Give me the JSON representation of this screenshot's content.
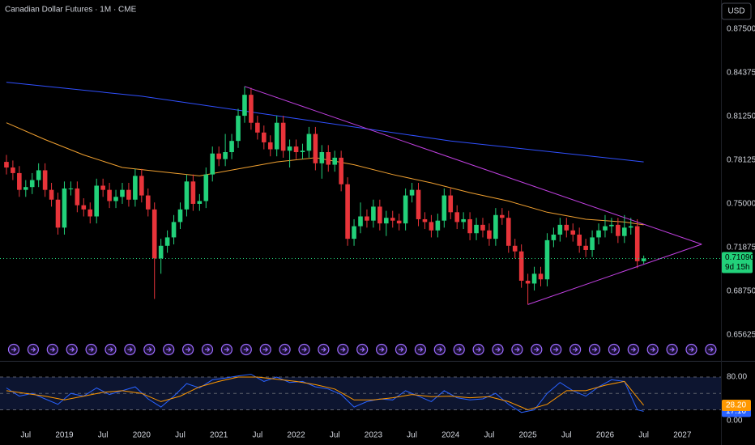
{
  "chart_data": [
    {
      "type": "candlestick",
      "title": "Canadian Dollar Futures · 1M · CME",
      "currency": "USD",
      "up_color": "#22d17a",
      "down_color": "#e8343a",
      "x": [
        "2018-04",
        "2018-05",
        "2018-06",
        "2018-07",
        "2018-08",
        "2018-09",
        "2018-10",
        "2018-11",
        "2018-12",
        "2019-01",
        "2019-02",
        "2019-03",
        "2019-04",
        "2019-05",
        "2019-06",
        "2019-07",
        "2019-08",
        "2019-09",
        "2019-10",
        "2019-11",
        "2019-12",
        "2020-01",
        "2020-02",
        "2020-03",
        "2020-04",
        "2020-05",
        "2020-06",
        "2020-07",
        "2020-08",
        "2020-09",
        "2020-10",
        "2020-11",
        "2020-12",
        "2021-01",
        "2021-02",
        "2021-03",
        "2021-04",
        "2021-05",
        "2021-06",
        "2021-07",
        "2021-08",
        "2021-09",
        "2021-10",
        "2021-11",
        "2021-12",
        "2022-01",
        "2022-02",
        "2022-03",
        "2022-04",
        "2022-05",
        "2022-06",
        "2022-07",
        "2022-08",
        "2022-09",
        "2022-10",
        "2022-11",
        "2022-12",
        "2023-01",
        "2023-02",
        "2023-03",
        "2023-04",
        "2023-05",
        "2023-06",
        "2023-07",
        "2023-08",
        "2023-09",
        "2023-10",
        "2023-11",
        "2023-12",
        "2024-01",
        "2024-02",
        "2024-03",
        "2024-04",
        "2024-05",
        "2024-06",
        "2024-07",
        "2024-08",
        "2024-09",
        "2024-10",
        "2024-11",
        "2024-12",
        "2025-01",
        "2025-02",
        "2025-03",
        "2025-04",
        "2025-05",
        "2025-06",
        "2025-07",
        "2025-08",
        "2025-09",
        "2025-10",
        "2025-11",
        "2025-12",
        "2026-01",
        "2026-02",
        "2026-03",
        "2026-04",
        "2026-05",
        "2026-06",
        "2026-07"
      ],
      "open": [
        0.78,
        0.776,
        0.772,
        0.76,
        0.762,
        0.767,
        0.774,
        0.76,
        0.753,
        0.733,
        0.761,
        0.761,
        0.749,
        0.746,
        0.741,
        0.763,
        0.76,
        0.752,
        0.755,
        0.76,
        0.753,
        0.77,
        0.756,
        0.746,
        0.711,
        0.72,
        0.726,
        0.737,
        0.746,
        0.766,
        0.75,
        0.752,
        0.771,
        0.786,
        0.782,
        0.787,
        0.795,
        0.813,
        0.828,
        0.808,
        0.801,
        0.794,
        0.789,
        0.808,
        0.788,
        0.791,
        0.787,
        0.788,
        0.8,
        0.779,
        0.787,
        0.778,
        0.783,
        0.764,
        0.725,
        0.734,
        0.741,
        0.738,
        0.748,
        0.736,
        0.74,
        0.738,
        0.736,
        0.756,
        0.76,
        0.739,
        0.737,
        0.731,
        0.738,
        0.756,
        0.744,
        0.737,
        0.739,
        0.729,
        0.735,
        0.731,
        0.725,
        0.742,
        0.74,
        0.72,
        0.716,
        0.695,
        0.693,
        0.7,
        0.696,
        0.724,
        0.728,
        0.735,
        0.731,
        0.728,
        0.72,
        0.717,
        0.726,
        0.731,
        0.734,
        0.735,
        0.727,
        0.733,
        0.734,
        0.709
      ],
      "high": [
        0.785,
        0.781,
        0.777,
        0.767,
        0.772,
        0.779,
        0.779,
        0.765,
        0.758,
        0.766,
        0.766,
        0.766,
        0.754,
        0.751,
        0.768,
        0.768,
        0.765,
        0.76,
        0.765,
        0.765,
        0.775,
        0.775,
        0.761,
        0.751,
        0.725,
        0.731,
        0.742,
        0.751,
        0.771,
        0.771,
        0.757,
        0.776,
        0.791,
        0.791,
        0.8,
        0.8,
        0.818,
        0.834,
        0.833,
        0.813,
        0.806,
        0.799,
        0.813,
        0.813,
        0.796,
        0.796,
        0.793,
        0.805,
        0.805,
        0.792,
        0.792,
        0.788,
        0.788,
        0.769,
        0.739,
        0.751,
        0.746,
        0.753,
        0.753,
        0.745,
        0.745,
        0.743,
        0.761,
        0.765,
        0.765,
        0.744,
        0.742,
        0.743,
        0.761,
        0.761,
        0.749,
        0.744,
        0.744,
        0.74,
        0.74,
        0.736,
        0.747,
        0.747,
        0.745,
        0.725,
        0.721,
        0.7,
        0.705,
        0.705,
        0.729,
        0.733,
        0.74,
        0.74,
        0.736,
        0.733,
        0.725,
        0.731,
        0.736,
        0.742,
        0.74,
        0.74,
        0.742,
        0.74,
        0.739,
        0.713
      ],
      "low": [
        0.771,
        0.767,
        0.755,
        0.755,
        0.757,
        0.762,
        0.755,
        0.748,
        0.728,
        0.728,
        0.756,
        0.744,
        0.741,
        0.736,
        0.736,
        0.755,
        0.747,
        0.747,
        0.75,
        0.748,
        0.748,
        0.751,
        0.741,
        0.682,
        0.7,
        0.715,
        0.721,
        0.732,
        0.741,
        0.745,
        0.745,
        0.747,
        0.766,
        0.777,
        0.777,
        0.782,
        0.79,
        0.808,
        0.803,
        0.796,
        0.789,
        0.784,
        0.784,
        0.783,
        0.776,
        0.782,
        0.782,
        0.783,
        0.774,
        0.768,
        0.773,
        0.773,
        0.759,
        0.72,
        0.72,
        0.729,
        0.733,
        0.733,
        0.731,
        0.727,
        0.733,
        0.731,
        0.731,
        0.751,
        0.734,
        0.732,
        0.726,
        0.726,
        0.733,
        0.739,
        0.732,
        0.732,
        0.724,
        0.724,
        0.726,
        0.72,
        0.72,
        0.735,
        0.715,
        0.711,
        0.69,
        0.678,
        0.688,
        0.691,
        0.691,
        0.719,
        0.723,
        0.726,
        0.723,
        0.715,
        0.712,
        0.712,
        0.721,
        0.726,
        0.729,
        0.722,
        0.722,
        0.728,
        0.704,
        0.707
      ],
      "close": [
        0.776,
        0.772,
        0.76,
        0.762,
        0.767,
        0.774,
        0.76,
        0.753,
        0.733,
        0.761,
        0.761,
        0.749,
        0.746,
        0.741,
        0.763,
        0.76,
        0.752,
        0.755,
        0.76,
        0.753,
        0.77,
        0.756,
        0.746,
        0.711,
        0.72,
        0.726,
        0.737,
        0.746,
        0.766,
        0.75,
        0.752,
        0.771,
        0.786,
        0.782,
        0.787,
        0.795,
        0.813,
        0.828,
        0.808,
        0.801,
        0.794,
        0.789,
        0.808,
        0.788,
        0.791,
        0.787,
        0.788,
        0.8,
        0.779,
        0.787,
        0.778,
        0.783,
        0.764,
        0.725,
        0.734,
        0.741,
        0.738,
        0.748,
        0.736,
        0.74,
        0.738,
        0.736,
        0.756,
        0.76,
        0.739,
        0.737,
        0.731,
        0.738,
        0.756,
        0.744,
        0.737,
        0.739,
        0.729,
        0.735,
        0.731,
        0.725,
        0.742,
        0.74,
        0.72,
        0.716,
        0.695,
        0.693,
        0.7,
        0.696,
        0.724,
        0.728,
        0.735,
        0.731,
        0.728,
        0.72,
        0.717,
        0.726,
        0.731,
        0.734,
        0.735,
        0.727,
        0.733,
        0.734,
        0.709,
        0.7109
      ],
      "lines": [
        {
          "color": "#f0a030",
          "x": [
            "2018-04",
            "2018-10",
            "2019-04",
            "2019-10",
            "2020-04",
            "2020-10",
            "2021-04",
            "2021-10",
            "2022-04",
            "2022-10",
            "2023-04",
            "2023-10",
            "2024-04",
            "2024-10",
            "2025-04",
            "2025-10",
            "2026-04",
            "2026-07"
          ],
          "values": [
            0.808,
            0.796,
            0.785,
            0.776,
            0.773,
            0.77,
            0.775,
            0.78,
            0.783,
            0.778,
            0.771,
            0.765,
            0.758,
            0.752,
            0.744,
            0.739,
            0.737,
            0.735
          ]
        },
        {
          "color": "#3050ff",
          "x": [
            "2018-04",
            "2020-01",
            "2022-01",
            "2024-01",
            "2026-07"
          ],
          "values": [
            0.837,
            0.827,
            0.811,
            0.795,
            0.78
          ]
        }
      ],
      "drawings": [
        {
          "color": "#c040e0",
          "x": [
            "2021-05",
            "2027-04"
          ],
          "values": [
            0.834,
            0.7211
          ]
        },
        {
          "color": "#c040e0",
          "x": [
            "2025-01",
            "2027-04"
          ],
          "values": [
            0.678,
            0.7211
          ]
        }
      ],
      "last_price": {
        "value": 0.7109,
        "label": "0.71090"
      },
      "countdown": "9d 15h",
      "xlim": [
        "2018-03",
        "2027-07"
      ],
      "xticks": [
        {
          "value": "2018-07",
          "label": "Jul"
        },
        {
          "value": "2019-01",
          "label": "2019"
        },
        {
          "value": "2019-07",
          "label": "Jul"
        },
        {
          "value": "2020-01",
          "label": "2020"
        },
        {
          "value": "2020-07",
          "label": "Jul"
        },
        {
          "value": "2021-01",
          "label": "2021"
        },
        {
          "value": "2021-07",
          "label": "Jul"
        },
        {
          "value": "2022-01",
          "label": "2022"
        },
        {
          "value": "2022-07",
          "label": "Jul"
        },
        {
          "value": "2023-01",
          "label": "2023"
        },
        {
          "value": "2023-07",
          "label": "Jul"
        },
        {
          "value": "2024-01",
          "label": "2024"
        },
        {
          "value": "2024-07",
          "label": "Jul"
        },
        {
          "value": "2025-01",
          "label": "2025"
        },
        {
          "value": "2025-07",
          "label": "Jul"
        },
        {
          "value": "2026-01",
          "label": "2026"
        },
        {
          "value": "2026-07",
          "label": "Jul"
        },
        {
          "value": "2027-01",
          "label": "2027"
        }
      ],
      "ylim": [
        0.6377,
        0.8958
      ],
      "yticks": [
        {
          "value": 0.875,
          "label": "0.87500"
        },
        {
          "value": 0.84375,
          "label": "0.84375"
        },
        {
          "value": 0.8125,
          "label": "0.81250"
        },
        {
          "value": 0.78125,
          "label": "0.78125"
        },
        {
          "value": 0.75,
          "label": "0.75000"
        },
        {
          "value": 0.71875,
          "label": "0.71875"
        },
        {
          "value": 0.6875,
          "label": "0.68750"
        },
        {
          "value": 0.65625,
          "label": "0.65625"
        }
      ]
    },
    {
      "type": "line",
      "ylim": [
        -11.9,
        103.7
      ],
      "yticks": [
        {
          "value": 80,
          "label": "80.00"
        },
        {
          "value": 0,
          "label": "0.00"
        }
      ],
      "band": [
        20,
        80
      ],
      "midline": 50,
      "series": [
        {
          "color": "#2962ff",
          "x": [
            "2018-04",
            "2018-06",
            "2018-08",
            "2018-10",
            "2018-12",
            "2019-02",
            "2019-04",
            "2019-06",
            "2019-08",
            "2019-10",
            "2019-12",
            "2020-02",
            "2020-04",
            "2020-06",
            "2020-08",
            "2020-10",
            "2020-12",
            "2021-02",
            "2021-04",
            "2021-06",
            "2021-08",
            "2021-10",
            "2021-12",
            "2022-02",
            "2022-04",
            "2022-06",
            "2022-08",
            "2022-10",
            "2022-12",
            "2023-02",
            "2023-04",
            "2023-06",
            "2023-08",
            "2023-10",
            "2023-12",
            "2024-02",
            "2024-04",
            "2024-06",
            "2024-08",
            "2024-10",
            "2024-12",
            "2025-02",
            "2025-04",
            "2025-06",
            "2025-08",
            "2025-10",
            "2025-12",
            "2026-02",
            "2026-04",
            "2026-06",
            "2026-07"
          ],
          "values": [
            60,
            45,
            50,
            40,
            30,
            50,
            45,
            60,
            48,
            55,
            62,
            40,
            25,
            45,
            68,
            60,
            75,
            78,
            82,
            85,
            72,
            80,
            70,
            72,
            62,
            58,
            48,
            25,
            35,
            40,
            38,
            55,
            45,
            35,
            55,
            42,
            38,
            40,
            50,
            30,
            15,
            20,
            50,
            70,
            55,
            45,
            62,
            75,
            72,
            20,
            17.1
          ],
          "last": {
            "value": 17.1,
            "label": "17.10"
          }
        },
        {
          "color": "#ff9800",
          "x": [
            "2018-04",
            "2018-07",
            "2018-10",
            "2019-01",
            "2019-04",
            "2019-07",
            "2019-10",
            "2020-01",
            "2020-04",
            "2020-07",
            "2020-10",
            "2021-01",
            "2021-04",
            "2021-07",
            "2021-10",
            "2022-01",
            "2022-04",
            "2022-07",
            "2022-10",
            "2023-01",
            "2023-04",
            "2023-07",
            "2023-10",
            "2024-01",
            "2024-04",
            "2024-07",
            "2024-10",
            "2025-01",
            "2025-04",
            "2025-07",
            "2025-10",
            "2026-01",
            "2026-04",
            "2026-07"
          ],
          "values": [
            55,
            50,
            45,
            38,
            45,
            52,
            55,
            50,
            35,
            45,
            62,
            72,
            80,
            80,
            76,
            72,
            66,
            58,
            38,
            38,
            42,
            48,
            44,
            45,
            42,
            44,
            35,
            20,
            30,
            55,
            55,
            65,
            72,
            28.2
          ],
          "last": {
            "value": 28.2,
            "label": "28.20"
          }
        }
      ]
    }
  ]
}
